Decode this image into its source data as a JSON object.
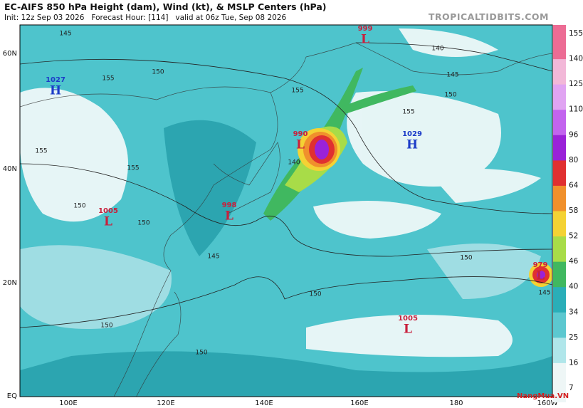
{
  "header": {
    "title": "EC-AIFS 850 hPa Height (dam), Wind (kt), & MSLP Centers (hPa)",
    "subtitle": "Init: 12z Sep 03 2026   Forecast Hour: [114]   valid at 06z Tue, Sep 08 2026",
    "site": "TROPICALTIDBITS.COM"
  },
  "map": {
    "lat_labels": [
      "60N",
      "40N",
      "20N",
      "EQ"
    ],
    "lon_labels": [
      "100E",
      "120E",
      "140E",
      "160E",
      "180",
      "160W"
    ],
    "centers": [
      {
        "pressure": "999",
        "symbol": "L"
      },
      {
        "pressure": "1027",
        "symbol": "H"
      },
      {
        "pressure": "990",
        "symbol": "L"
      },
      {
        "pressure": "1029",
        "symbol": "H"
      },
      {
        "pressure": "1005",
        "symbol": "L"
      },
      {
        "pressure": "998",
        "symbol": "L"
      },
      {
        "pressure": "979",
        "symbol": "L"
      },
      {
        "pressure": "1005",
        "symbol": "L"
      }
    ],
    "contour_labels": [
      "145",
      "150",
      "155",
      "140",
      "145",
      "150",
      "155",
      "155",
      "150",
      "155",
      "150",
      "145",
      "150",
      "150",
      "155",
      "150",
      "140",
      "145",
      "150"
    ]
  },
  "colorbar": {
    "ticks": [
      "7",
      "16",
      "25",
      "34",
      "40",
      "46",
      "52",
      "58",
      "64",
      "80",
      "96",
      "110",
      "125",
      "140",
      "155"
    ],
    "colors": [
      "#eef6f6",
      "#b0e6ea",
      "#5cc8d0",
      "#2aaeb8",
      "#40b860",
      "#a8dc48",
      "#f4d234",
      "#f0902c",
      "#e03030",
      "#9a22d8",
      "#c264ee",
      "#e0a4f2",
      "#f2b8d8",
      "#ec6c94"
    ]
  },
  "watermark": "NangMua.VN"
}
